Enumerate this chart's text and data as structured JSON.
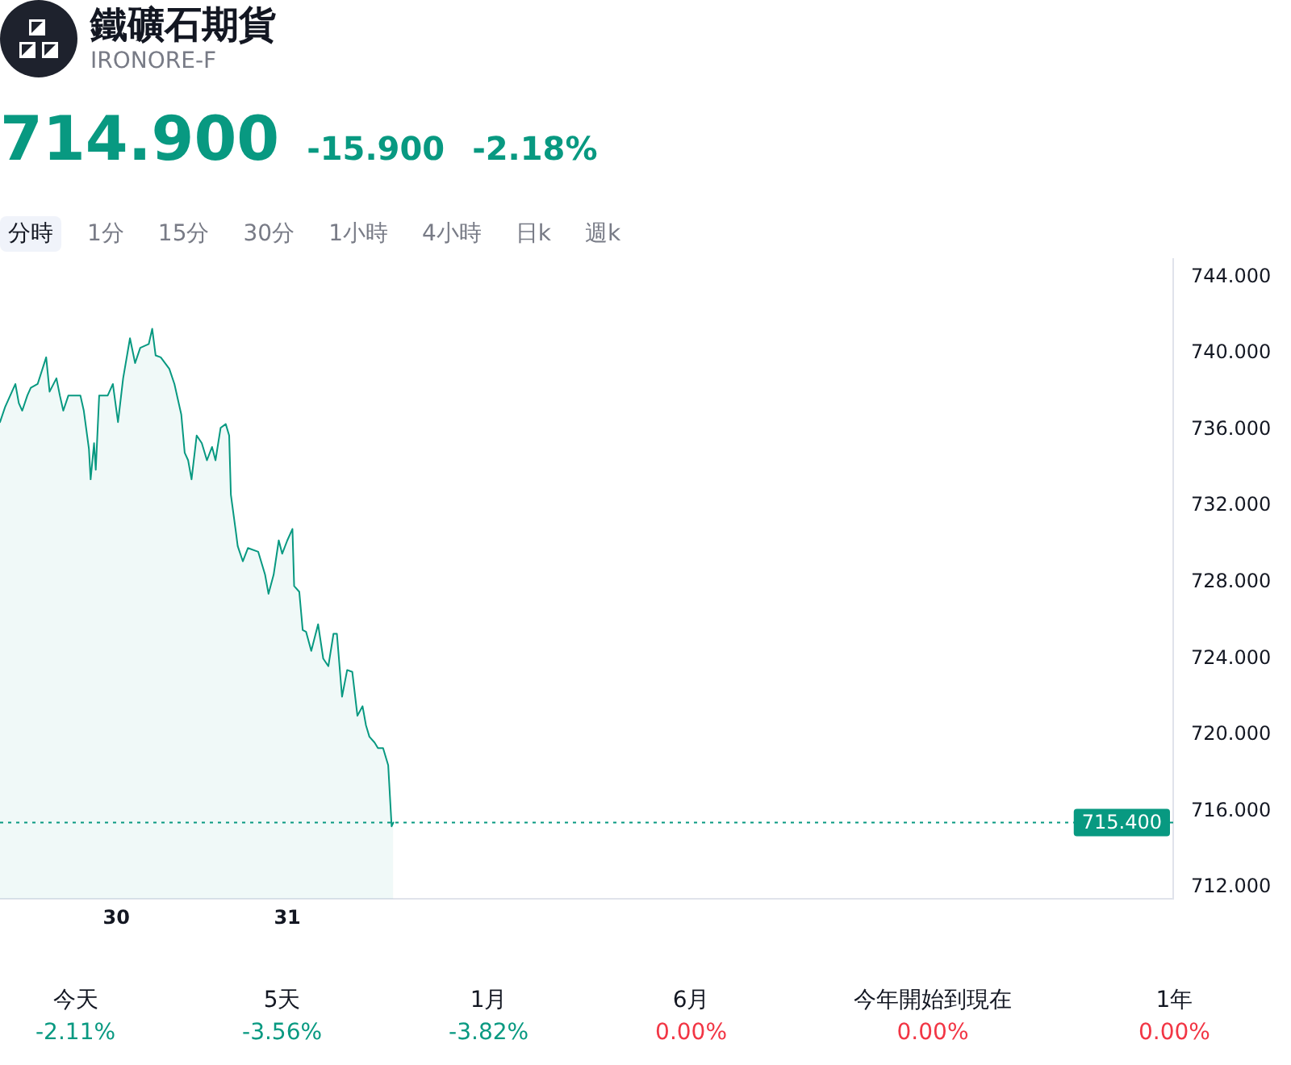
{
  "chart_data": [
    {
      "type": "area",
      "title": "鐵礦石期貨",
      "subtitle": "IRONORE-F",
      "annotations": [
        "714.900",
        "-15.900",
        "-2.18%",
        "分時",
        "1分",
        "15分",
        "30分",
        "1小時",
        "4小時",
        "日k",
        "週k"
      ],
      "x": [
        29.32,
        29.35,
        29.38,
        29.41,
        29.43,
        29.45,
        29.48,
        29.5,
        29.54,
        29.59,
        29.61,
        29.65,
        29.67,
        29.69,
        29.72,
        29.79,
        29.81,
        29.84,
        29.85,
        29.87,
        29.88,
        29.9,
        29.95,
        29.98,
        30.01,
        30.04,
        30.08,
        30.11,
        30.14,
        30.19,
        30.21,
        30.23,
        30.26,
        30.31,
        30.34,
        30.38,
        30.4,
        30.42,
        30.44,
        30.47,
        30.5,
        30.53,
        30.56,
        30.58,
        30.61,
        30.64,
        30.66,
        30.67,
        30.7,
        30.71,
        30.74,
        30.77,
        30.83,
        30.87,
        30.89,
        30.92,
        30.95,
        30.97,
        31.0,
        31.03,
        31.04,
        31.07,
        31.09,
        31.11,
        31.14,
        31.18,
        31.21,
        31.24,
        31.27,
        31.29,
        31.32,
        31.35,
        31.38,
        31.41,
        31.44,
        31.46,
        31.48,
        31.51,
        31.53,
        31.56,
        31.59,
        31.61,
        31.62
      ],
      "values": [
        736.4,
        737.2,
        737.8,
        738.4,
        737.4,
        737.0,
        737.8,
        738.2,
        738.4,
        739.8,
        738.0,
        738.7,
        737.8,
        737.0,
        737.8,
        737.8,
        737.0,
        735.0,
        733.4,
        735.3,
        733.9,
        737.8,
        737.8,
        738.4,
        736.4,
        738.7,
        740.8,
        739.5,
        740.3,
        740.5,
        741.3,
        739.9,
        739.8,
        739.2,
        738.4,
        736.8,
        734.8,
        734.4,
        733.4,
        735.7,
        735.3,
        734.4,
        735.1,
        734.4,
        736.1,
        736.3,
        735.7,
        732.6,
        730.6,
        729.9,
        729.1,
        729.8,
        729.6,
        728.4,
        727.4,
        728.4,
        730.2,
        729.5,
        730.2,
        730.8,
        727.8,
        727.5,
        725.5,
        725.4,
        724.4,
        725.8,
        724.0,
        723.6,
        725.3,
        725.3,
        722.0,
        723.4,
        723.3,
        721.0,
        721.5,
        720.5,
        719.9,
        719.6,
        719.3,
        719.3,
        718.4,
        715.2,
        715.4
      ],
      "color": "#089981",
      "xlim": [
        29.32,
        36.18
      ],
      "xticks": [
        30,
        31
      ],
      "ylim": [
        711.4,
        745
      ],
      "yticks": [
        {
          "value": 712,
          "label": "712.000"
        },
        {
          "value": 716,
          "label": "716.000"
        },
        {
          "value": 720,
          "label": "720.000"
        },
        {
          "value": 724,
          "label": "724.000"
        },
        {
          "value": 728,
          "label": "728.000"
        },
        {
          "value": 732,
          "label": "732.000"
        },
        {
          "value": 736,
          "label": "736.000"
        },
        {
          "value": 740,
          "label": "740.000"
        },
        {
          "value": 744,
          "label": "744.000"
        }
      ],
      "ref_lines": [
        {
          "axis": "y",
          "value": 715.4,
          "label": "715.400",
          "color": "#089981",
          "line_style": "dotted"
        }
      ]
    },
    {
      "type": "other",
      "categories": [
        "今天",
        "5天",
        "1月",
        "6月",
        "今年開始到現在",
        "1年"
      ],
      "values": [
        -2.11,
        -3.56,
        -3.82,
        0.0,
        0.0,
        0.0
      ],
      "value_labels": [
        "-2.11%",
        "-3.56%",
        "-3.82%",
        "0.00%",
        "0.00%",
        "0.00%"
      ]
    }
  ]
}
